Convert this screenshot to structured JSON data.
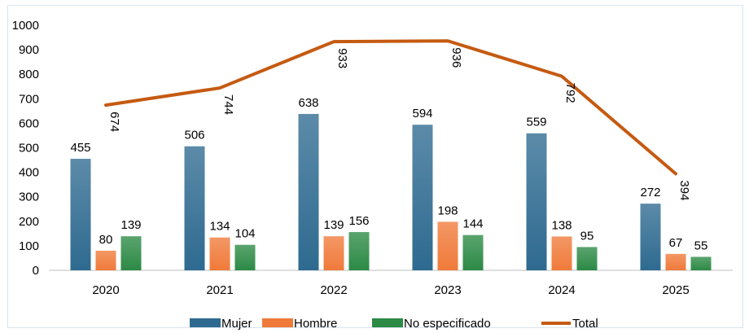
{
  "chart_data": {
    "type": "bar",
    "categories": [
      "2020",
      "2021",
      "2022",
      "2023",
      "2024",
      "2025"
    ],
    "series": [
      {
        "name": "Mujer",
        "kind": "bar",
        "values": [
          455,
          506,
          638,
          594,
          559,
          272
        ],
        "color": "#2e6a90"
      },
      {
        "name": "Hombre",
        "kind": "bar",
        "values": [
          80,
          134,
          139,
          198,
          138,
          67
        ],
        "color": "#f07a3a"
      },
      {
        "name": "No especificado",
        "kind": "bar",
        "values": [
          139,
          104,
          156,
          144,
          95,
          55
        ],
        "color": "#2c8a45"
      },
      {
        "name": "Total",
        "kind": "line",
        "values": [
          674,
          744,
          933,
          936,
          792,
          394
        ],
        "color": "#c55a11"
      }
    ],
    "ylim": [
      0,
      1000
    ],
    "yticks": [
      0,
      100,
      200,
      300,
      400,
      500,
      600,
      700,
      800,
      900,
      1000
    ],
    "title": "",
    "xlabel": "",
    "ylabel": "",
    "legend_position": "bottom",
    "grid": false
  }
}
